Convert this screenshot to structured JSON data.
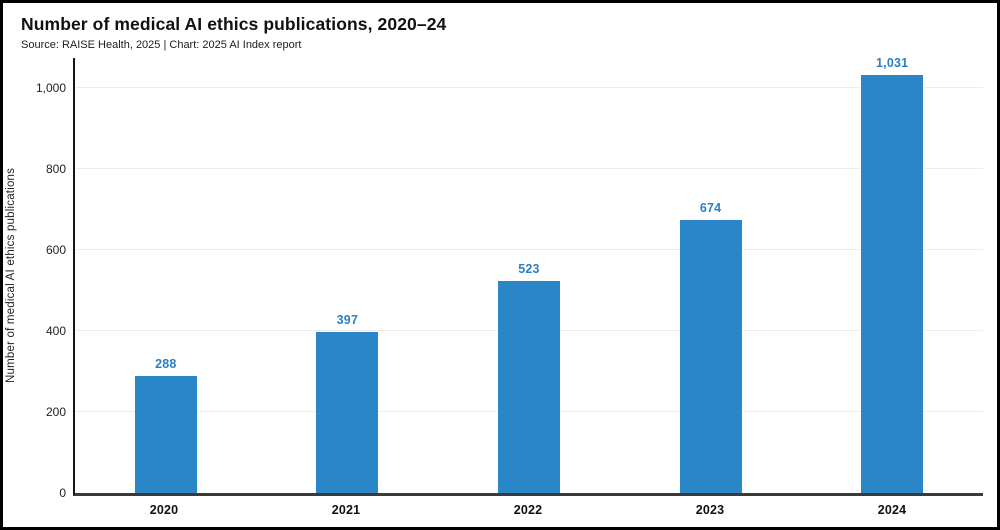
{
  "header": {
    "title": "Number of medical AI ethics publications, 2020–24",
    "subtitle": "Source: RAISE Health, 2025 | Chart: 2025 AI Index report"
  },
  "colors": {
    "bar": "#2b86c8",
    "value_label": "#2e7fc1",
    "axis": "#151515",
    "gridline": "#ededed",
    "frame_border": "#000000"
  },
  "chart_data": {
    "type": "bar",
    "title": "Number of medical AI ethics publications, 2020–24",
    "subtitle": "Source: RAISE Health, 2025 | Chart: 2025 AI Index report",
    "categories": [
      "2020",
      "2021",
      "2022",
      "2023",
      "2024"
    ],
    "values": [
      288,
      397,
      523,
      674,
      1031
    ],
    "value_labels": [
      "288",
      "397",
      "523",
      "674",
      "1,031"
    ],
    "xlabel": "",
    "ylabel": "Number of medical AI ethics publications",
    "yticks": [
      0,
      200,
      400,
      600,
      800,
      1000
    ],
    "ytick_labels": [
      "0",
      "200",
      "400",
      "600",
      "800",
      "1,000"
    ],
    "ylim": [
      0,
      1074
    ],
    "grid": "horizontal",
    "legend": "none"
  }
}
